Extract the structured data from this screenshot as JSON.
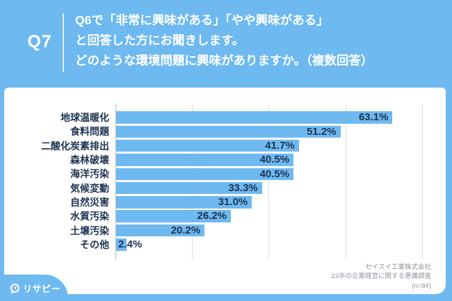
{
  "header": {
    "q_label": "Q7",
    "question_lines": [
      "Q6で「非常に興味がある」「やや興味がある」",
      "と回答した方にお聞きします。",
      "どのような環境問題に興味がありますか。（複数回答）"
    ]
  },
  "chart_data": {
    "type": "bar",
    "orientation": "horizontal",
    "categories": [
      "地球温暖化",
      "食料問題",
      "二酸化炭素排出",
      "森林破壊",
      "海洋汚染",
      "気候変動",
      "自然災害",
      "水質汚染",
      "土壌汚染",
      "その他"
    ],
    "values": [
      63.1,
      51.2,
      41.7,
      40.5,
      40.5,
      33.3,
      31.0,
      26.2,
      20.2,
      2.4
    ],
    "value_labels": [
      "63.1%",
      "51.2%",
      "41.7%",
      "40.5%",
      "40.5%",
      "33.3%",
      "31.0%",
      "26.2%",
      "20.2%",
      "2.4%"
    ],
    "unit": "%",
    "xlim": [
      0,
      70
    ],
    "gridline_step": 17.5,
    "grid": true,
    "legend": false,
    "bar_color": "#6fb9f1",
    "label_color": "#1d3350"
  },
  "footer": {
    "source_lines": [
      "セイスイ工業株式会社",
      "23卒の企業経営に関する意識調査",
      "(n=84)"
    ]
  },
  "logo": {
    "text": "リサピー",
    "icon": "magnifier-pin-icon"
  },
  "colors": {
    "background": "#6db9f0",
    "panel": "#ffffff",
    "accent_navy": "#1d3350"
  }
}
